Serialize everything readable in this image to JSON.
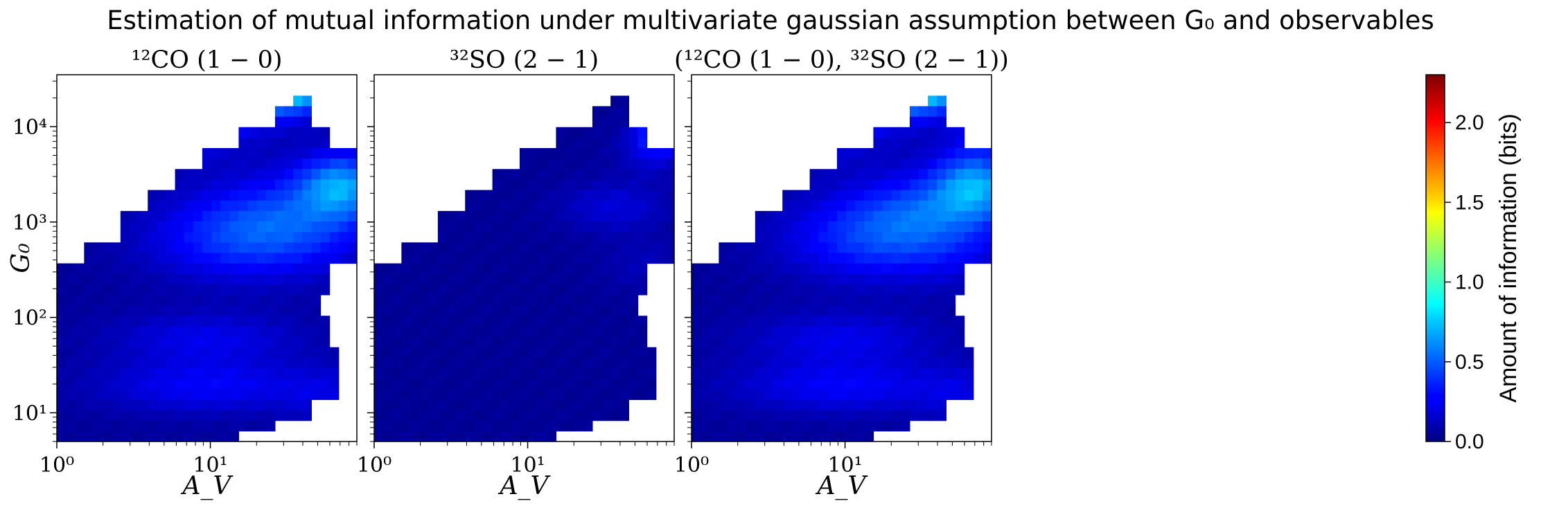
{
  "title": "Estimation of mutual information under multivariate gaussian assumption between G₀ and observables",
  "colorbar": {
    "label": "Amount of information (bits)",
    "ticks": [
      "0.0",
      "0.5",
      "1.0",
      "1.5",
      "2.0"
    ],
    "min": 0,
    "max": 2.3,
    "colormap": "jet"
  },
  "chart_data": [
    {
      "type": "heatmap",
      "title": "¹²CO (1 − 0)",
      "xlabel": "A_V",
      "ylabel": "G₀",
      "xlim": [
        1,
        90
      ],
      "ylim": [
        5,
        35000
      ],
      "xscale": "log",
      "yscale": "log",
      "xticks": [
        "10⁰",
        "10¹"
      ],
      "yticks": [
        "10¹",
        "10²",
        "10³",
        "10⁴"
      ]
    },
    {
      "type": "heatmap",
      "title": "³²SO (2 − 1)",
      "xlabel": "A_V",
      "ylabel": "",
      "xlim": [
        1,
        90
      ],
      "ylim": [
        5,
        35000
      ],
      "xscale": "log",
      "yscale": "log",
      "xticks": [
        "10⁰",
        "10¹"
      ],
      "yticks": []
    },
    {
      "type": "heatmap",
      "title": "(¹²CO (1 − 0), ³²SO (2 − 1))",
      "xlabel": "A_V",
      "ylabel": "",
      "xlim": [
        1,
        90
      ],
      "ylim": [
        5,
        35000
      ],
      "xscale": "log",
      "yscale": "log",
      "xticks": [
        "10⁰",
        "10¹"
      ],
      "yticks": []
    }
  ]
}
